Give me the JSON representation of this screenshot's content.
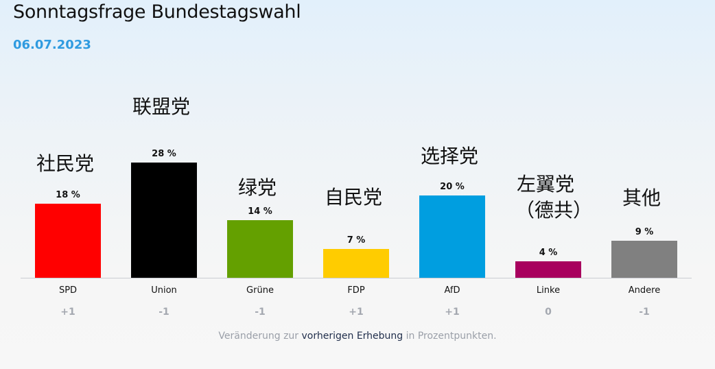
{
  "header": {
    "title": "Sonntagsfrage Bundestagswahl",
    "date": "06.07.2023"
  },
  "chart_data": {
    "type": "bar",
    "categories": [
      "SPD",
      "Union",
      "Grüne",
      "FDP",
      "AfD",
      "Linke",
      "Andere"
    ],
    "values": [
      18,
      28,
      14,
      7,
      20,
      4,
      9
    ],
    "value_labels": [
      "18 %",
      "28 %",
      "14 %",
      "7 %",
      "20 %",
      "4 %",
      "9 %"
    ],
    "changes": [
      "+1",
      "-1",
      "-1",
      "+1",
      "+1",
      "0",
      "-1"
    ],
    "colors": [
      "#ff0000",
      "#000000",
      "#64a000",
      "#ffcc00",
      "#009ee0",
      "#a8005e",
      "#808080"
    ],
    "annotations": [
      "社民党",
      "联盟党",
      "绿党",
      "自民党",
      "选择党",
      "左翼党\n（德共）",
      "其他"
    ],
    "ylim": [
      0,
      28
    ],
    "grid": false
  },
  "footer": {
    "note_pre": "Veränderung zur ",
    "note_link": "vorherigen Erhebung",
    "note_post": " in Prozentpunkten."
  }
}
